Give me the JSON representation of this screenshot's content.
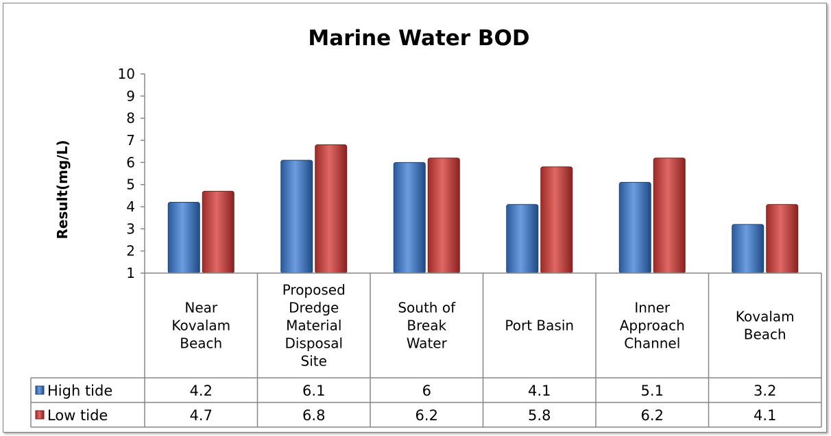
{
  "chart_data": {
    "type": "bar",
    "title": "Marine Water BOD",
    "ylabel": "Result(mg/L)",
    "xlabel": "",
    "ylim": [
      1,
      10
    ],
    "yticks": [
      1,
      2,
      3,
      4,
      5,
      6,
      7,
      8,
      9,
      10
    ],
    "grid": false,
    "legend_placement": "bottom-left (data table)",
    "categories": [
      "Near Kovalam Beach",
      "Proposed Dredge Material Disposal Site",
      "South of Break Water",
      "Port Basin",
      "Inner Approach Channel",
      "Kovalam Beach"
    ],
    "category_lines": [
      [
        "Near",
        "Kovalam",
        "Beach"
      ],
      [
        "Proposed",
        "Dredge",
        "Material",
        "Disposal",
        "Site"
      ],
      [
        "South of",
        "Break",
        "Water"
      ],
      [
        "Port Basin"
      ],
      [
        "Inner",
        "Approach",
        "Channel"
      ],
      [
        "Kovalam",
        "Beach"
      ]
    ],
    "series": [
      {
        "name": "High tide",
        "color": "#4a7ebb",
        "values": [
          4.2,
          6.1,
          6,
          4.1,
          5.1,
          3.2
        ],
        "labels": [
          "4.2",
          "6.1",
          "6",
          "4.1",
          "5.1",
          "3.2"
        ]
      },
      {
        "name": "Low tide",
        "color": "#c0504d",
        "values": [
          4.7,
          6.8,
          6.2,
          5.8,
          6.2,
          4.1
        ],
        "labels": [
          "4.7",
          "6.8",
          "6.2",
          "5.8",
          "6.2",
          "4.1"
        ]
      }
    ]
  }
}
